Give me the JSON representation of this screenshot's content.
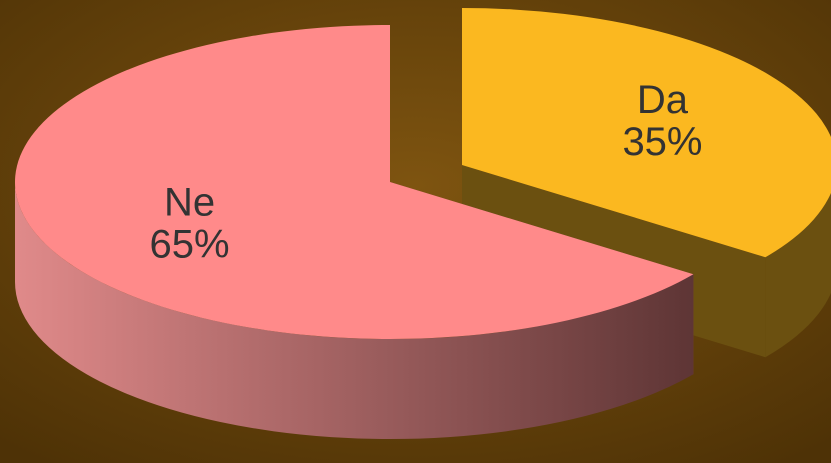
{
  "chart_data": {
    "type": "pie",
    "categories": [
      "Da",
      "Ne"
    ],
    "values": [
      35,
      65
    ],
    "value_labels": [
      "35%",
      "65%"
    ],
    "colors": [
      "#fbb820",
      "#ff8a8a"
    ],
    "side_colors": [
      "#6b5010",
      "#7a4545"
    ]
  }
}
